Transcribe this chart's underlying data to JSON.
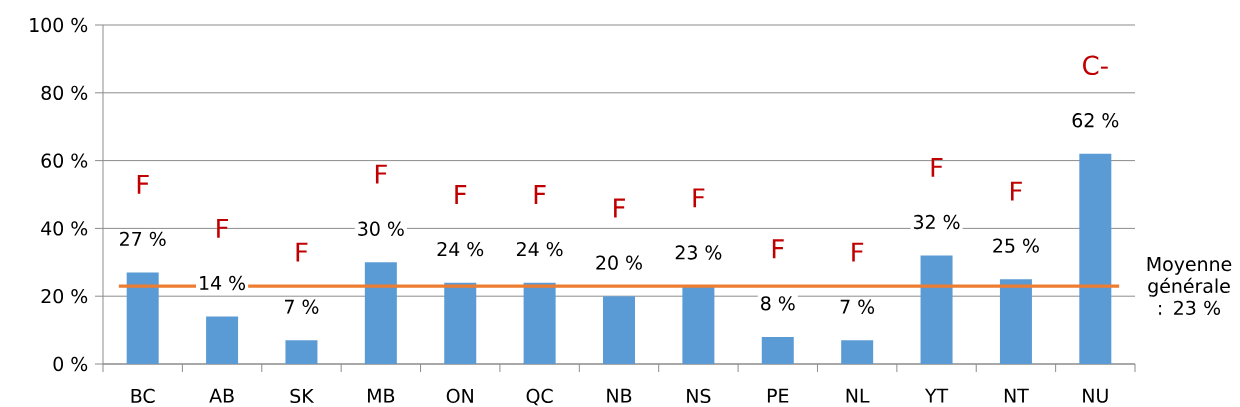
{
  "chart_data": {
    "type": "bar",
    "categories": [
      "BC",
      "AB",
      "SK",
      "MB",
      "ON",
      "QC",
      "NB",
      "NS",
      "PE",
      "NL",
      "YT",
      "NT",
      "NU"
    ],
    "values": [
      27,
      14,
      7,
      30,
      24,
      24,
      20,
      23,
      8,
      7,
      32,
      25,
      62
    ],
    "value_labels": [
      "27 %",
      "14 %",
      "7 %",
      "30 %",
      "24 %",
      "24 %",
      "20 %",
      "23 %",
      "8 %",
      "7 %",
      "32 %",
      "25 %",
      "62 %"
    ],
    "color": "#5b9bd5",
    "ylim": [
      0,
      100
    ],
    "yticks": [
      {
        "value": 0,
        "label": "0 %"
      },
      {
        "value": 20,
        "label": "20 %"
      },
      {
        "value": 40,
        "label": "40 %"
      },
      {
        "value": 60,
        "label": "60 %"
      },
      {
        "value": 80,
        "label": "80 %"
      },
      {
        "value": 100,
        "label": "100 %"
      }
    ],
    "grid": "y",
    "ref_lines": [
      {
        "axis": "y",
        "value": 23,
        "label": "Moyenne générale : 23 %",
        "color": "#ed7d31"
      }
    ],
    "annotations": [
      "F",
      "F",
      "F",
      "F",
      "F",
      "F",
      "F",
      "F",
      "F",
      "F",
      "F",
      "F",
      "C-"
    ]
  }
}
